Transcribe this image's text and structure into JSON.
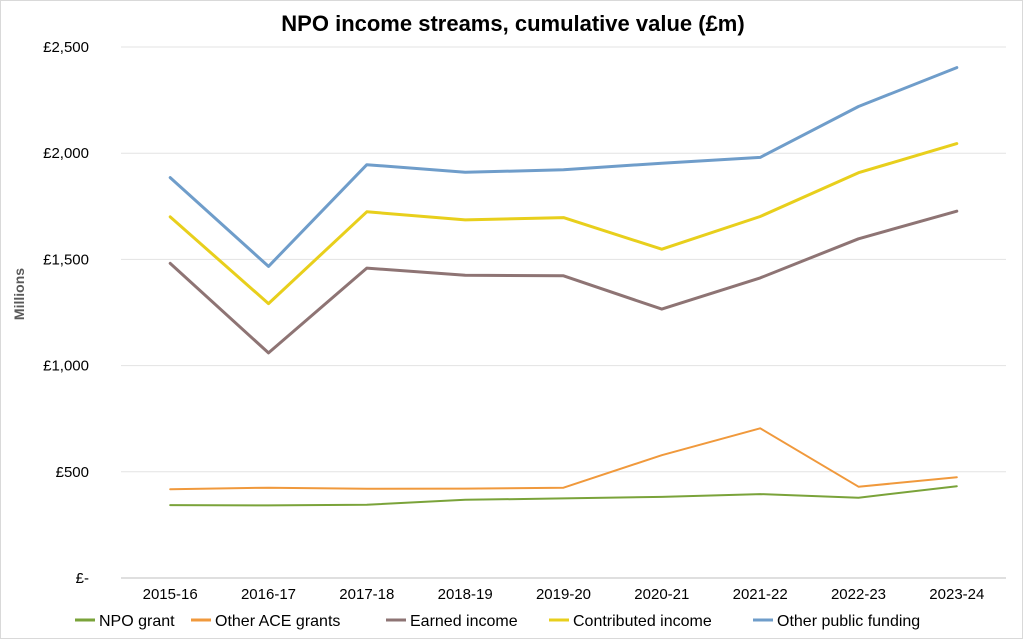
{
  "chart_data": {
    "type": "line",
    "title": "NPO income streams, cumulative value (£m)",
    "xlabel": "",
    "ylabel": "Millions",
    "ylim": [
      0,
      2500
    ],
    "yticks": [
      0,
      500,
      1000,
      1500,
      2000,
      2500
    ],
    "ytick_labels": [
      "£-",
      "£500",
      "£1,000",
      "£1,500",
      "£2,000",
      "£2,500"
    ],
    "grid": true,
    "legend_position": "bottom",
    "categories": [
      "2015-16",
      "2016-17",
      "2017-18",
      "2018-19",
      "2019-20",
      "2020-21",
      "2021-22",
      "2022-23",
      "2023-24"
    ],
    "series": [
      {
        "name": "NPO grant",
        "color": "#7aa33a",
        "values": [
          343,
          342,
          345,
          368,
          375,
          382,
          395,
          378,
          432
        ]
      },
      {
        "name": "Other ACE grants",
        "color": "#f0993c",
        "values": [
          418,
          425,
          420,
          421,
          425,
          578,
          705,
          430,
          474
        ]
      },
      {
        "name": "Earned income",
        "color": "#8e7474",
        "values": [
          1481,
          1060,
          1459,
          1425,
          1423,
          1266,
          1413,
          1597,
          1727
        ]
      },
      {
        "name": "Contributed income",
        "color": "#e8cf1c",
        "values": [
          1700,
          1292,
          1724,
          1686,
          1697,
          1548,
          1702,
          1908,
          2045
        ]
      },
      {
        "name": "Other public funding",
        "color": "#6f9dca",
        "values": [
          1885,
          1467,
          1946,
          1910,
          1922,
          1953,
          1980,
          2220,
          2403
        ]
      }
    ]
  }
}
